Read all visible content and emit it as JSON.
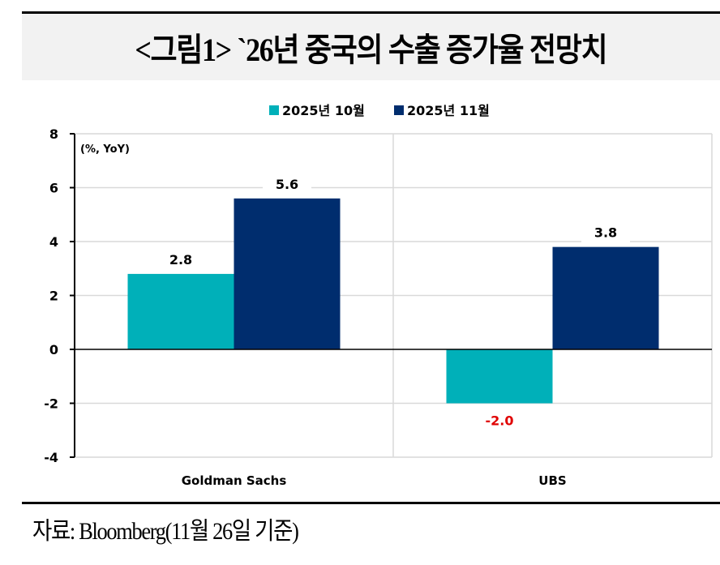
{
  "title": "<그림1> `26년 중국의 수출 증가율 전망치",
  "source": "자료: Bloomberg(11월 26일 기준)",
  "colors": {
    "series1": "#00B0B9",
    "series2": "#002D6E",
    "negative_label": "#E00000",
    "title_band": "#f2f2f2"
  },
  "chart_data": {
    "type": "bar",
    "title": "`26년 중국의 수출 증가율 전망치",
    "unit_label": "(%, YoY)",
    "xlabel": "",
    "ylabel": "",
    "categories": [
      "Goldman Sachs",
      "UBS"
    ],
    "series": [
      {
        "name": "2025년 10월",
        "values": [
          2.8,
          -2.0
        ],
        "color": "#00B0B9"
      },
      {
        "name": "2025년 11월",
        "values": [
          5.6,
          3.8
        ],
        "color": "#002D6E"
      }
    ],
    "data_labels": [
      [
        "2.8",
        "-2.0"
      ],
      [
        "5.6",
        "3.8"
      ]
    ],
    "ylim": [
      -4,
      8
    ],
    "yticks": [
      8,
      6,
      4,
      2,
      0,
      -2,
      -4
    ],
    "ytick_labels": [
      "8",
      "6",
      "4",
      "2",
      "0",
      "-2",
      "-4"
    ],
    "grid": true,
    "legend_position": "top-center"
  }
}
